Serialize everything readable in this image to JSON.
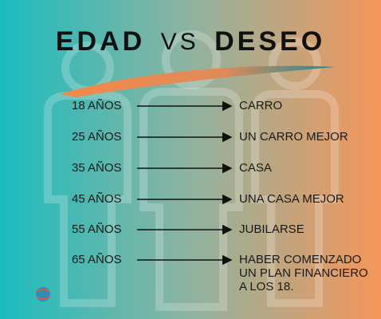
{
  "title": {
    "left": "EDAD",
    "middle": "VS",
    "right": "DESEO"
  },
  "rows": [
    {
      "age": "18 AÑOS",
      "desire": [
        "CARRO"
      ]
    },
    {
      "age": "25 AÑOS",
      "desire": [
        "UN CARRO MEJOR"
      ]
    },
    {
      "age": "35 AÑOS",
      "desire": [
        "CASA"
      ]
    },
    {
      "age": "45 AÑOS",
      "desire": [
        "UNA CASA MEJOR"
      ]
    },
    {
      "age": "55 AÑOS",
      "desire": [
        "JUBILARSE"
      ]
    },
    {
      "age": "65 AÑOS",
      "desire": [
        "HABER COMENZADO",
        "UN PLAN FINANCIERO",
        "A LOS 18."
      ]
    }
  ]
}
